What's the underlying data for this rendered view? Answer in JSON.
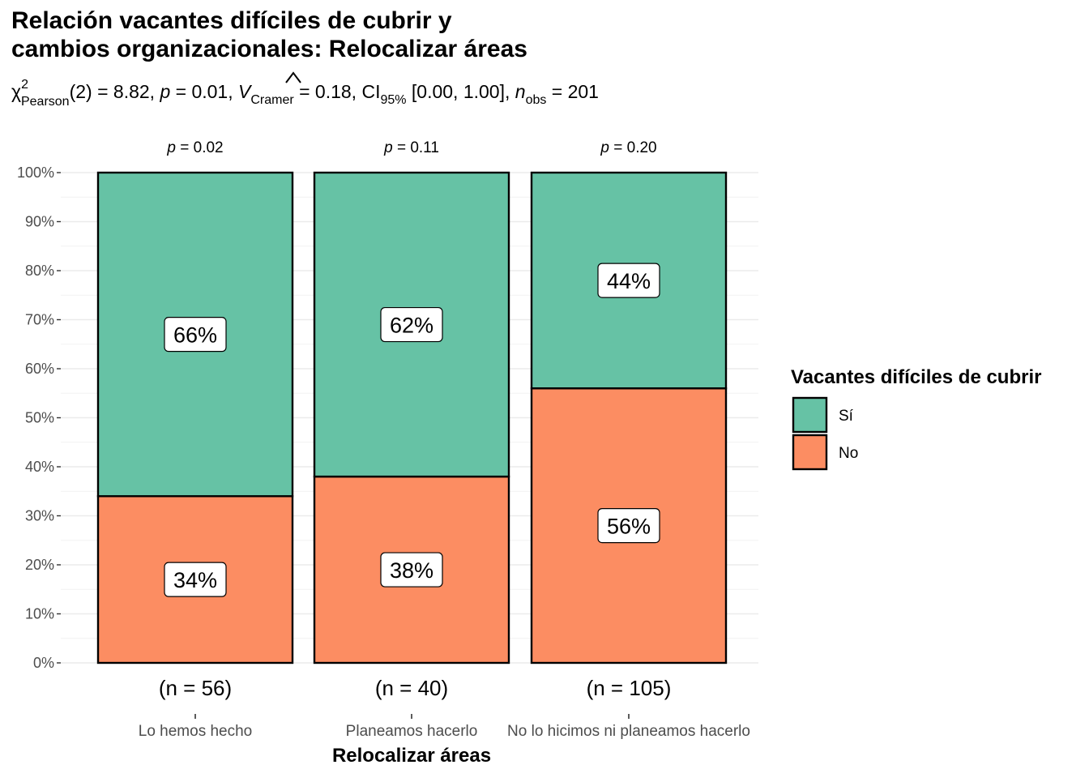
{
  "chart_data": {
    "type": "bar",
    "stacked": true,
    "percent": true,
    "title_line1": "Relación vacantes difíciles de cubrir y",
    "title_line2": "cambios organizacionales: Relocalizar áreas",
    "subtitle": {
      "chi": "χ",
      "chi_sup": "2",
      "chi_sub": "Pearson",
      "stat": "(2) = 8.82, ",
      "p_sym": "p",
      "p_val": " = 0.01, ",
      "v_sym": "V",
      "v_sub": "Cramer",
      "v_val": " = 0.18, CI",
      "ci_sub": "95%",
      "ci_val": " [0.00, 1.00], ",
      "n_sym": "n",
      "n_sub": "obs",
      "n_val": " = 201"
    },
    "xlabel": "Relocalizar áreas",
    "ylabel": "",
    "ylim": [
      0,
      100
    ],
    "yticks": [
      "0%",
      "10%",
      "20%",
      "30%",
      "40%",
      "50%",
      "60%",
      "70%",
      "80%",
      "90%",
      "100%"
    ],
    "categories": [
      "Lo hemos hecho",
      "Planeamos hacerlo",
      "No lo hicimos ni planeamos hacerlo"
    ],
    "counts": [
      "(n = 56)",
      "(n = 40)",
      "(n = 105)"
    ],
    "pvalues": [
      "= 0.02",
      "= 0.11",
      "= 0.20"
    ],
    "p_symbol": "p",
    "series": [
      {
        "name": "No",
        "values": [
          34,
          38,
          56
        ],
        "labels": [
          "34%",
          "38%",
          "56%"
        ],
        "color": "#FC8D62"
      },
      {
        "name": "Sí",
        "values": [
          66,
          62,
          44
        ],
        "labels": [
          "66%",
          "62%",
          "44%"
        ],
        "color": "#66C2A5"
      }
    ],
    "legend": {
      "title": "Vacantes difíciles de cubrir",
      "position": "right",
      "items": [
        {
          "label": "Sí",
          "color": "#66C2A5"
        },
        {
          "label": "No",
          "color": "#FC8D62"
        }
      ]
    },
    "grid": true
  }
}
